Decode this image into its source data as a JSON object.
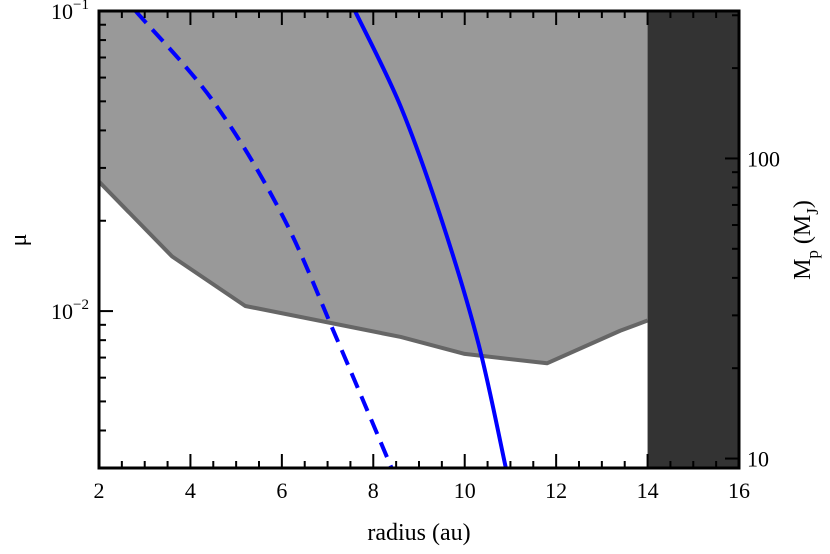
{
  "chart_data": {
    "type": "area",
    "xlabel": "radius (au)",
    "ylabel": "μ",
    "y2label": {
      "main": "M",
      "sub1": "p",
      "mid": " (M",
      "sub2": "J",
      "end": ")"
    },
    "xlim": [
      2,
      16
    ],
    "ylim": [
      0.003,
      0.1
    ],
    "yscale": "log",
    "y2lim": [
      9.3,
      310
    ],
    "y2scale": "log",
    "grid": false,
    "x_ticks": [
      {
        "value": 2,
        "label": "2"
      },
      {
        "value": 4,
        "label": "4"
      },
      {
        "value": 6,
        "label": "6"
      },
      {
        "value": 8,
        "label": "8"
      },
      {
        "value": 10,
        "label": "10"
      },
      {
        "value": 12,
        "label": "12"
      },
      {
        "value": 14,
        "label": "14"
      },
      {
        "value": 16,
        "label": "16"
      }
    ],
    "y_ticks": [
      {
        "value": 0.1,
        "label_base": "10",
        "label_exp": "−1"
      },
      {
        "value": 0.01,
        "label_base": "10",
        "label_exp": "−2"
      }
    ],
    "y2_ticks": [
      {
        "value": 100,
        "label": "100"
      },
      {
        "value": 10,
        "label": "10"
      }
    ],
    "series": [
      {
        "role": "excluded-region",
        "color": "#999999",
        "edge_color": "#666666",
        "x": [
          2.0,
          3.6,
          5.2,
          8.6,
          10.0,
          11.8,
          13.4,
          14.0
        ],
        "y": [
          0.027,
          0.0152,
          0.0104,
          0.0082,
          0.0072,
          0.0067,
          0.0086,
          0.0093
        ]
      },
      {
        "role": "dark-band",
        "color": "#333333",
        "x_range": [
          14.0,
          16.0
        ]
      },
      {
        "role": "solid-line",
        "color": "#0000ff",
        "style": "solid",
        "x": [
          7.6,
          8.6,
          9.5,
          10.3,
          10.9
        ],
        "y": [
          0.1,
          0.048,
          0.02,
          0.0078,
          0.003
        ]
      },
      {
        "role": "dashed-line",
        "color": "#0000ff",
        "style": "dashed",
        "x": [
          2.8,
          4.5,
          6.0,
          7.2,
          8.4
        ],
        "y": [
          0.1,
          0.05,
          0.021,
          0.0081,
          0.003
        ]
      }
    ]
  }
}
